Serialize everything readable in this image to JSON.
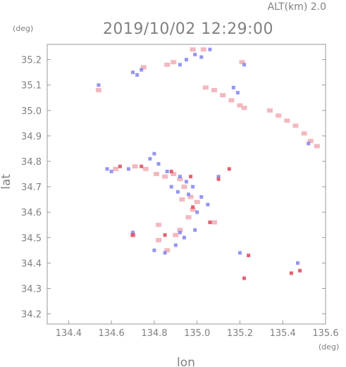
{
  "chart_data": {
    "type": "scatter",
    "title": "2019/10/02 12:29:00",
    "altitude_label": "ALT(km) 2.0",
    "xlabel": "lon",
    "ylabel": "lat",
    "x_unit": "(deg)",
    "y_unit": "(deg)",
    "xlim": [
      134.3,
      135.6
    ],
    "ylim": [
      34.16,
      35.26
    ],
    "x_ticks": [
      "134.4",
      "134.6",
      "134.8",
      "135.0",
      "135.2",
      "135.4",
      "135.6"
    ],
    "y_ticks": [
      "34.2",
      "34.3",
      "34.4",
      "34.5",
      "34.6",
      "34.7",
      "34.8",
      "34.9",
      "35.0",
      "35.1",
      "35.2"
    ],
    "grid": false,
    "colors": {
      "pink": "#f2b0b8",
      "blue": "#8a8af0",
      "red": "#e05060",
      "axis": "#9a9a9a",
      "text": "#808080"
    },
    "series": [
      {
        "color": "pink",
        "points": [
          [
            135.04,
            35.09
          ],
          [
            135.08,
            35.08
          ],
          [
            135.12,
            35.06
          ],
          [
            135.16,
            35.04
          ],
          [
            135.2,
            35.02
          ],
          [
            135.22,
            35.01
          ],
          [
            135.34,
            35.0
          ],
          [
            135.38,
            34.98
          ],
          [
            135.42,
            34.96
          ],
          [
            135.46,
            34.94
          ],
          [
            135.5,
            34.91
          ],
          [
            135.53,
            34.88
          ],
          [
            135.56,
            34.86
          ],
          [
            134.71,
            34.78
          ],
          [
            134.76,
            34.77
          ],
          [
            134.81,
            34.75
          ],
          [
            134.85,
            34.74
          ],
          [
            134.89,
            34.75
          ],
          [
            134.92,
            34.73
          ],
          [
            134.94,
            34.7
          ],
          [
            134.97,
            34.66
          ],
          [
            135.0,
            34.64
          ],
          [
            134.96,
            34.58
          ],
          [
            134.92,
            34.53
          ],
          [
            134.9,
            34.51
          ],
          [
            134.82,
            34.55
          ],
          [
            134.7,
            34.51
          ],
          [
            135.08,
            34.56
          ],
          [
            134.93,
            34.65
          ],
          [
            134.98,
            34.61
          ],
          [
            134.86,
            35.18
          ],
          [
            134.89,
            35.19
          ],
          [
            134.75,
            35.17
          ],
          [
            134.54,
            35.08
          ],
          [
            134.62,
            34.77
          ],
          [
            134.98,
            35.24
          ],
          [
            135.03,
            35.24
          ],
          [
            135.21,
            35.19
          ],
          [
            134.82,
            34.49
          ],
          [
            134.86,
            34.45
          ]
        ]
      },
      {
        "color": "blue",
        "points": [
          [
            134.7,
            35.15
          ],
          [
            134.72,
            35.14
          ],
          [
            134.74,
            35.16
          ],
          [
            134.92,
            35.18
          ],
          [
            134.95,
            35.2
          ],
          [
            134.99,
            35.22
          ],
          [
            135.02,
            35.21
          ],
          [
            135.06,
            35.24
          ],
          [
            135.22,
            35.18
          ],
          [
            135.19,
            35.07
          ],
          [
            135.17,
            35.09
          ],
          [
            135.52,
            34.87
          ],
          [
            134.78,
            34.81
          ],
          [
            134.8,
            34.83
          ],
          [
            134.82,
            34.79
          ],
          [
            134.86,
            34.76
          ],
          [
            134.92,
            34.74
          ],
          [
            134.95,
            34.72
          ],
          [
            134.88,
            34.7
          ],
          [
            134.96,
            34.67
          ],
          [
            135.02,
            34.66
          ],
          [
            135.0,
            34.6
          ],
          [
            135.05,
            34.63
          ],
          [
            134.92,
            34.52
          ],
          [
            134.94,
            34.5
          ],
          [
            134.99,
            34.53
          ],
          [
            134.7,
            34.52
          ],
          [
            134.68,
            34.77
          ],
          [
            134.6,
            34.76
          ],
          [
            134.58,
            34.77
          ],
          [
            135.47,
            34.4
          ],
          [
            135.2,
            34.44
          ],
          [
            134.9,
            34.47
          ],
          [
            134.85,
            34.44
          ],
          [
            134.8,
            34.45
          ],
          [
            135.1,
            34.74
          ],
          [
            134.98,
            34.7
          ],
          [
            134.91,
            34.68
          ],
          [
            134.54,
            35.1
          ]
        ]
      },
      {
        "color": "red",
        "points": [
          [
            134.64,
            34.78
          ],
          [
            134.74,
            34.78
          ],
          [
            134.88,
            34.76
          ],
          [
            134.97,
            34.74
          ],
          [
            135.1,
            34.73
          ],
          [
            135.06,
            34.56
          ],
          [
            134.85,
            34.51
          ],
          [
            134.7,
            34.51
          ],
          [
            135.15,
            34.77
          ],
          [
            135.24,
            34.43
          ],
          [
            135.22,
            34.34
          ],
          [
            135.44,
            34.36
          ],
          [
            135.48,
            34.37
          ],
          [
            134.98,
            34.62
          ]
        ]
      }
    ]
  }
}
